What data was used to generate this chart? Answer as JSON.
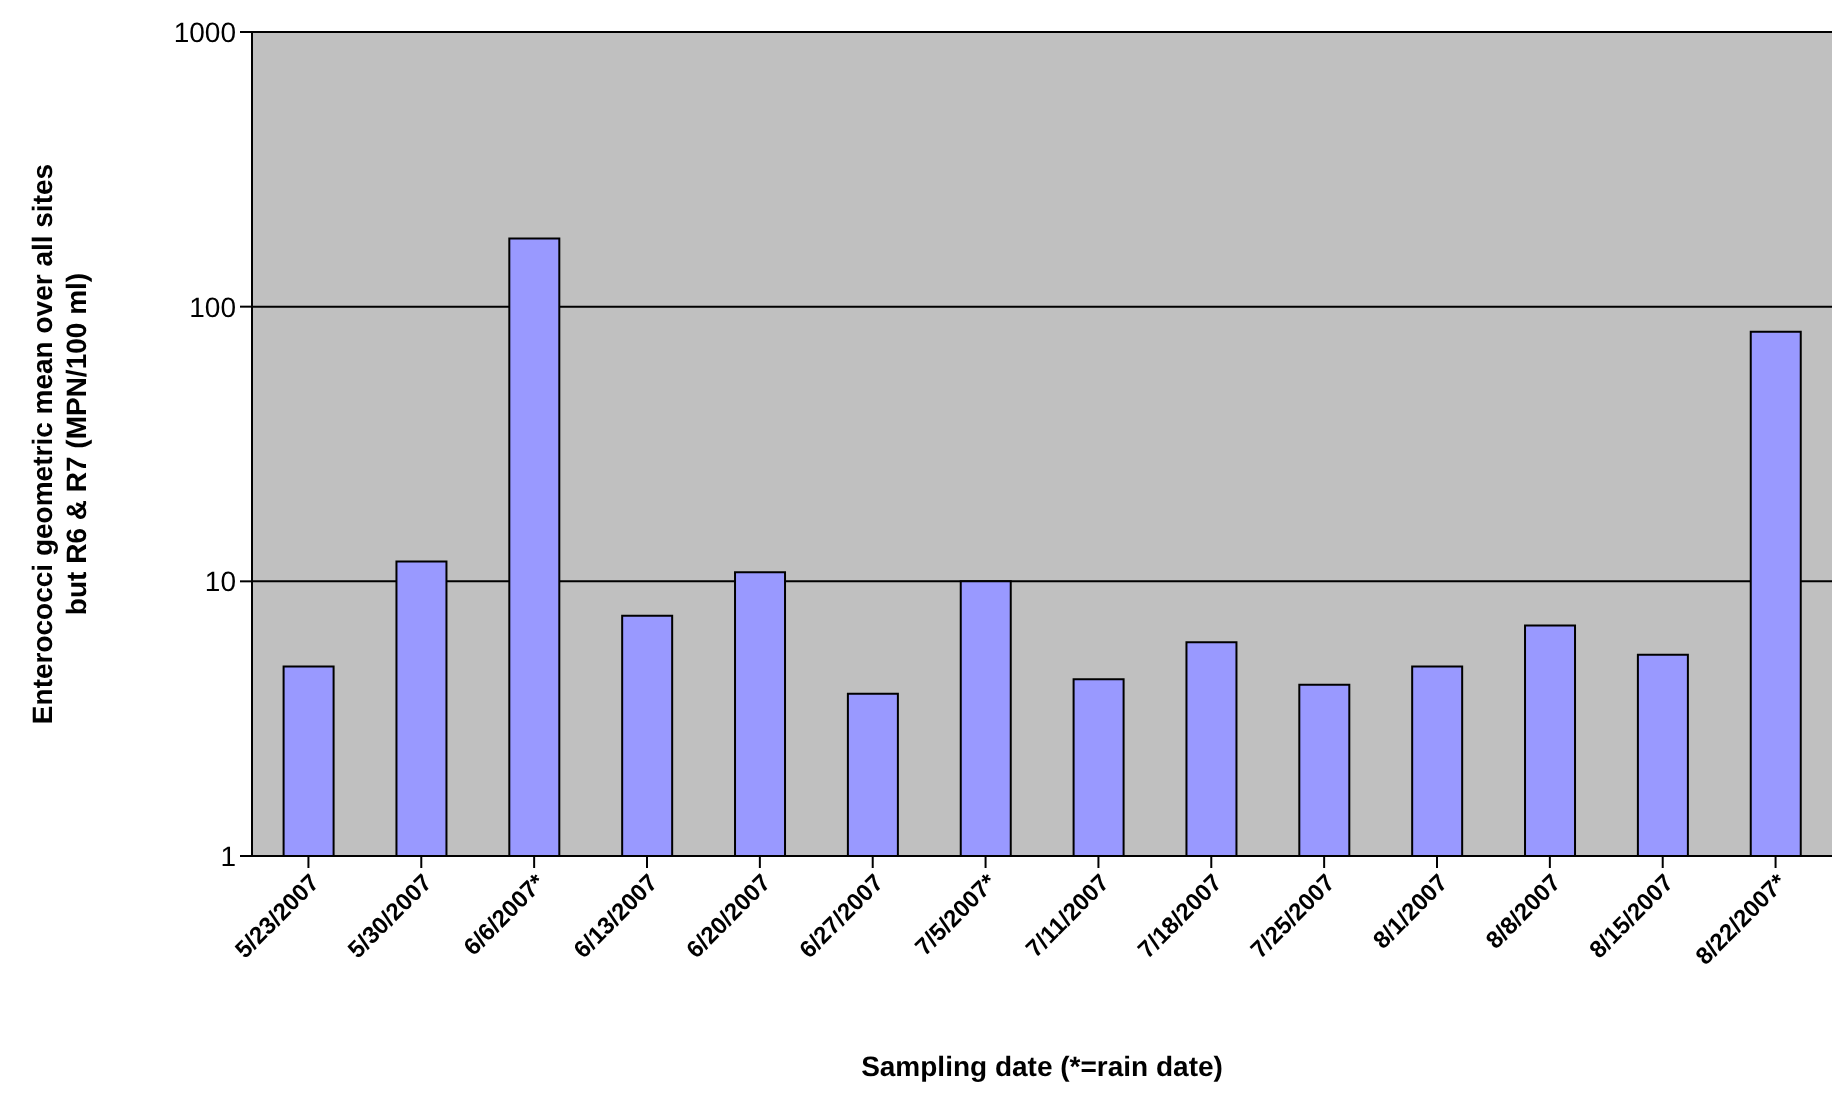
{
  "chart_data": {
    "type": "bar",
    "xlabel": "Sampling date (*=rain date)",
    "ylabel": "Enterococci geometric mean over all sites\nbut R6 & R7 (MPN/100 ml)",
    "categories": [
      "5/23/2007",
      "5/30/2007",
      "6/6/2007*",
      "6/13/2007",
      "6/20/2007",
      "6/27/2007",
      "7/5/2007*",
      "7/11/2007",
      "7/18/2007",
      "7/25/2007",
      "8/1/2007",
      "8/8/2007",
      "8/15/2007",
      "8/22/2007*"
    ],
    "values": [
      4.9,
      11.8,
      177,
      7.5,
      10.8,
      3.9,
      10,
      4.4,
      6.0,
      4.2,
      4.9,
      6.9,
      5.4,
      81
    ],
    "color": "#9999ff",
    "log": true,
    "ylim": [
      1,
      1000
    ],
    "yticks": [
      1,
      10,
      100,
      1000
    ],
    "grid": "y"
  }
}
